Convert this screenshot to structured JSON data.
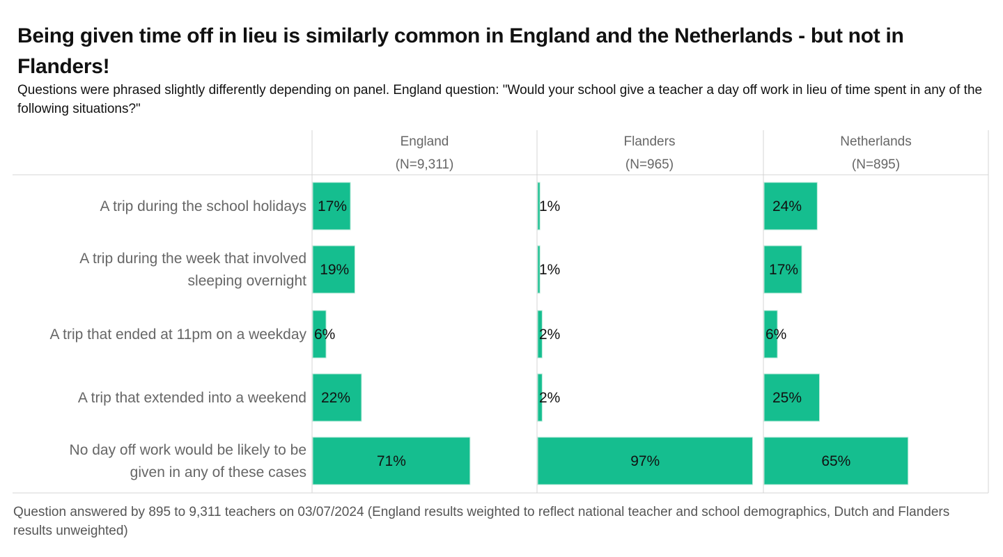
{
  "title": "Being given time off in lieu is similarly common in England and the Netherlands - but not in Flanders!",
  "subtitle": "Questions were phrased slightly differently depending on panel. England question: \"Would your school give a teacher a day off work in lieu of time spent in any of the following situations?\"",
  "footnote": "Question answered by 895 to 9,311 teachers on 03/07/2024 (England results weighted to reflect national teacher and school demographics, Dutch and Flanders results unweighted)",
  "colors": {
    "bar": "#15be8f",
    "bar_edge": "#b9ead9",
    "grid": "#d4d4d4"
  },
  "chart_data": {
    "type": "bar",
    "orientation": "horizontal",
    "value_format": "percent",
    "xlim": [
      0,
      100
    ],
    "categories": [
      "A trip during the school holidays",
      "A trip during the week that involved sleeping overnight",
      "A trip that ended at 11pm on a weekday",
      "A trip that extended into a weekend",
      "No day off work would be likely to be given in any of these cases"
    ],
    "category_lines": [
      [
        "A trip during the school holidays"
      ],
      [
        "A trip during the week that involved",
        "sleeping overnight"
      ],
      [
        "A trip that ended at 11pm on a weekday"
      ],
      [
        "A trip that extended into a weekend"
      ],
      [
        "No day off work would be likely to be",
        "given in any of these cases"
      ]
    ],
    "panels": [
      {
        "name": "England",
        "n": "(N=9,311)",
        "values": [
          17,
          19,
          6,
          22,
          71
        ]
      },
      {
        "name": "Flanders",
        "n": "(N=965)",
        "values": [
          1,
          1,
          2,
          2,
          97
        ]
      },
      {
        "name": "Netherlands",
        "n": "(N=895)",
        "values": [
          24,
          17,
          6,
          25,
          65
        ]
      }
    ]
  }
}
